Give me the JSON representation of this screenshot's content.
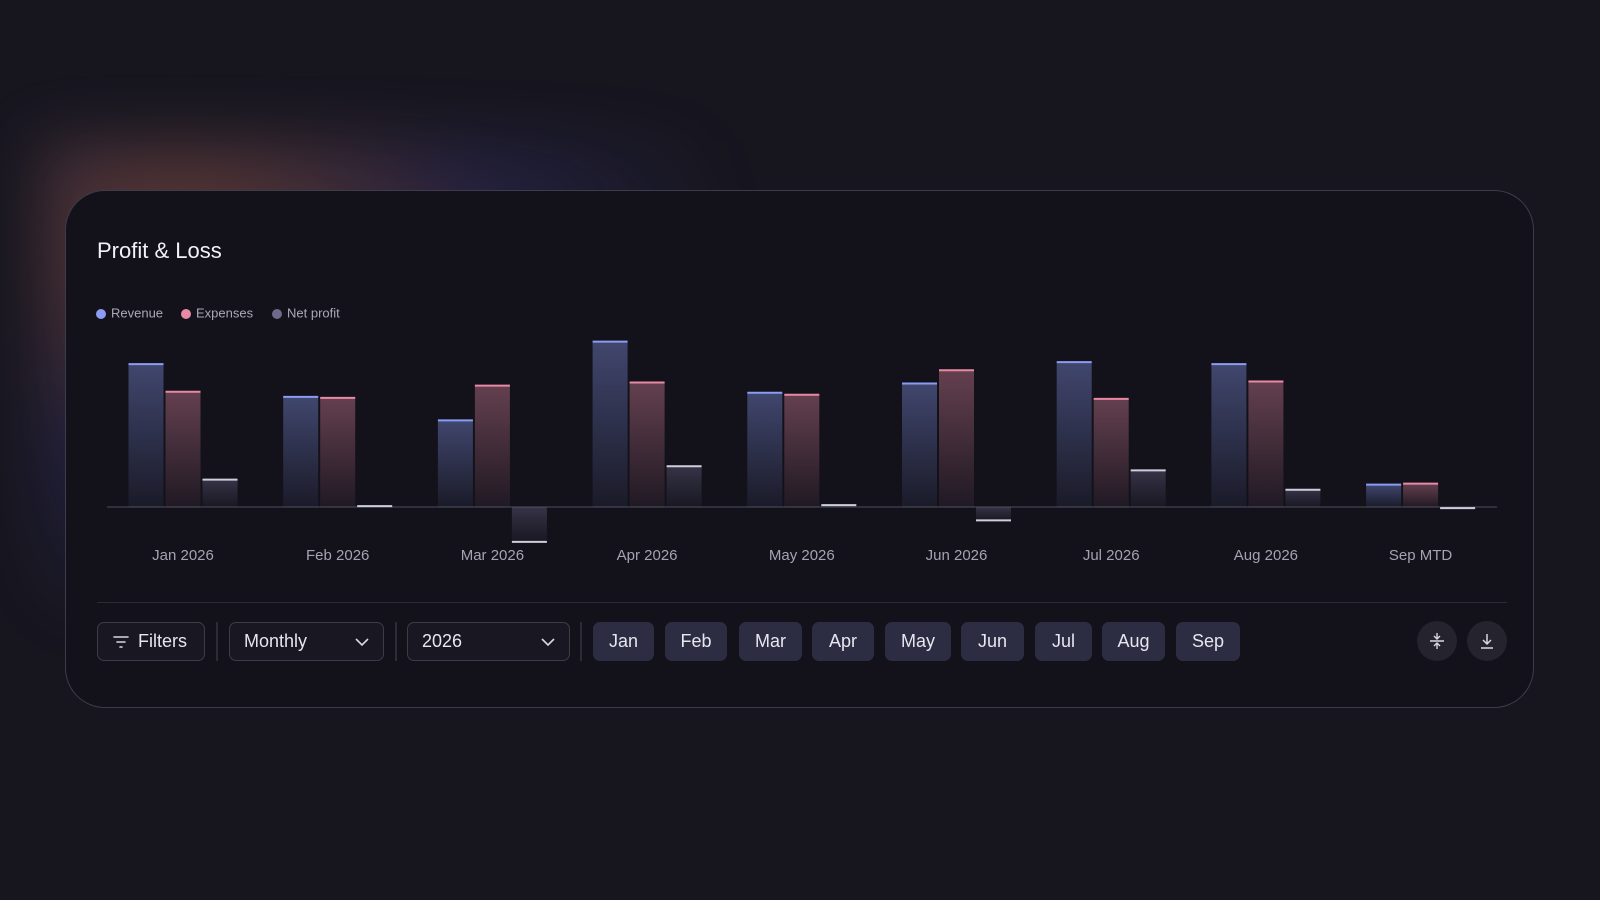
{
  "chart_data": {
    "type": "bar",
    "title": "Profit & Loss",
    "categories": [
      "Jan 2026",
      "Feb 2026",
      "Mar 2026",
      "Apr 2026",
      "May 2026",
      "Jun 2026",
      "Jul 2026",
      "Aug 2026",
      "Sep MTD"
    ],
    "series": [
      {
        "name": "Revenue",
        "color": "#8b9cf4",
        "values": [
          140,
          108,
          85,
          162,
          112,
          121,
          142,
          140,
          22
        ]
      },
      {
        "name": "Expenses",
        "color": "#e88aa3",
        "values": [
          113,
          107,
          119,
          122,
          110,
          134,
          106,
          123,
          23
        ]
      },
      {
        "name": "Net profit",
        "color": "#6e6a8c",
        "values": [
          27,
          1,
          -34,
          40,
          2,
          -13,
          36,
          17,
          -1
        ]
      }
    ],
    "ylim": [
      -40,
      170
    ]
  },
  "toolbar": {
    "filters": "Filters",
    "period": "Monthly",
    "year": "2026",
    "months": [
      "Jan",
      "Feb",
      "Mar",
      "Apr",
      "May",
      "Jun",
      "Jul",
      "Aug",
      "Sep"
    ]
  }
}
